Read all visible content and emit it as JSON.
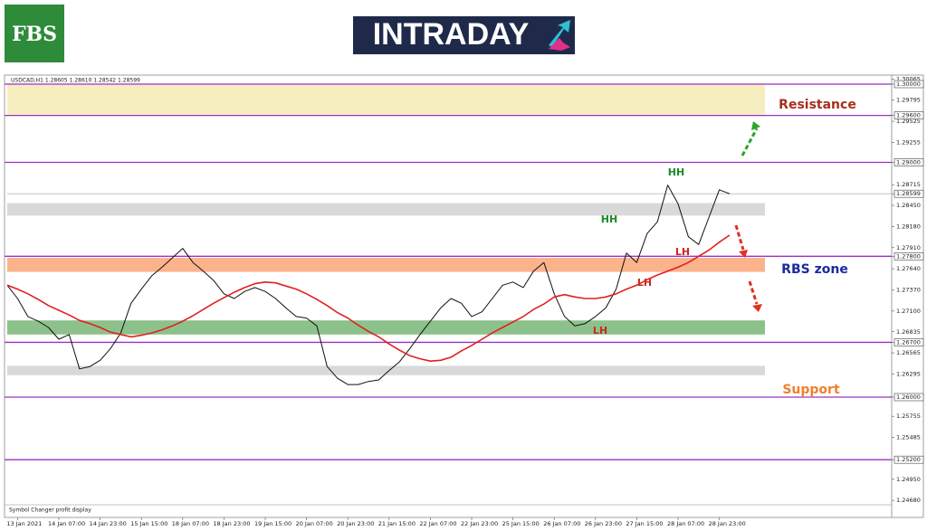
{
  "brand": {
    "logo": "FBS",
    "banner": "INTRADAY"
  },
  "chart_data": {
    "type": "line",
    "symbol_header": "USDCAD,H1  1.28605 1.28610 1.28542 1.28599",
    "footer": "Symbol Changer profit display",
    "x": [
      null,
      "13 Jan 2021",
      null,
      null,
      null,
      "14 Jan 07:00",
      null,
      null,
      null,
      "14 Jan 23:00",
      null,
      null,
      null,
      "15 Jan 15:00",
      null,
      null,
      null,
      "18 Jan 07:00",
      null,
      null,
      null,
      "18 Jan 23:00",
      null,
      null,
      null,
      "19 Jan 15:00",
      null,
      null,
      null,
      "20 Jan 07:00",
      null,
      null,
      null,
      "20 Jan 23:00",
      null,
      null,
      null,
      "21 Jan 15:00",
      null,
      null,
      null,
      "22 Jan 07:00",
      null,
      null,
      null,
      "22 Jan 23:00",
      null,
      null,
      null,
      "25 Jan 15:00",
      null,
      null,
      null,
      "26 Jan 07:00",
      null,
      null,
      null,
      "26 Jan 23:00",
      null,
      null,
      null,
      "27 Jan 15:00",
      null,
      null,
      null,
      "28 Jan 07:00",
      null,
      null,
      null,
      "28 Jan 23:00",
      null
    ],
    "series": [
      {
        "name": "USDCAD",
        "color": "#111111",
        "values": [
          1.2743,
          1.2726,
          1.2703,
          1.2697,
          1.2689,
          1.2674,
          1.268,
          1.2636,
          1.2639,
          1.2647,
          1.2662,
          1.2682,
          1.272,
          1.2738,
          1.2755,
          1.2766,
          1.2778,
          1.279,
          1.2772,
          1.2761,
          1.2749,
          1.2732,
          1.2726,
          1.2735,
          1.274,
          1.2735,
          1.2726,
          1.2714,
          1.2703,
          1.2701,
          1.2691,
          1.2639,
          1.2624,
          1.2616,
          1.2616,
          1.262,
          1.2622,
          1.2634,
          1.2645,
          1.2662,
          1.268,
          1.2697,
          1.2714,
          1.2726,
          1.272,
          1.2703,
          1.2709,
          1.2726,
          1.2743,
          1.2747,
          1.274,
          1.2761,
          1.2772,
          1.2732,
          1.2703,
          1.2691,
          1.2694,
          1.2703,
          1.2714,
          1.2738,
          1.2784,
          1.2772,
          1.2809,
          1.2824,
          1.2871,
          1.2847,
          1.2805,
          1.2795,
          1.283,
          1.2865,
          1.28599
        ]
      },
      {
        "name": "MA",
        "color": "#e02020",
        "values": [
          1.2743,
          1.2738,
          1.2732,
          1.2725,
          1.2717,
          1.2711,
          1.2705,
          1.2698,
          1.2694,
          1.2689,
          1.2683,
          1.268,
          1.2677,
          1.2679,
          1.2682,
          1.2686,
          1.2691,
          1.2697,
          1.2704,
          1.2712,
          1.272,
          1.2727,
          1.2734,
          1.274,
          1.2745,
          1.2747,
          1.2746,
          1.2742,
          1.2738,
          1.2732,
          1.2725,
          1.2717,
          1.2708,
          1.2701,
          1.2692,
          1.2684,
          1.2677,
          1.2668,
          1.266,
          1.2653,
          1.2649,
          1.2646,
          1.2647,
          1.2651,
          1.2659,
          1.2666,
          1.2674,
          1.2682,
          1.2689,
          1.2696,
          1.2703,
          1.2712,
          1.2719,
          1.2728,
          1.2731,
          1.2728,
          1.2726,
          1.2726,
          1.2728,
          1.2732,
          1.2738,
          1.2743,
          1.275,
          1.2756,
          1.2761,
          1.2766,
          1.2772,
          1.278,
          1.2788,
          1.2798,
          1.2807
        ]
      }
    ],
    "ylim": [
      1.24624,
      1.30104
    ],
    "yticks": [
      1.30065,
      {
        "value": 1.3,
        "label": "1.30000"
      },
      1.29795,
      {
        "value": 1.296,
        "label": "1.29600"
      },
      1.29525,
      1.29255,
      {
        "value": 1.29,
        "label": "1.29000"
      },
      1.28715,
      1.28599,
      {
        "value": 1.2845,
        "label": "1.28450"
      },
      {
        "value": 1.2818,
        "label": "1.28180"
      },
      {
        "value": 1.2791,
        "label": "1.27910"
      },
      {
        "value": 1.278,
        "label": "1.27800"
      },
      {
        "value": 1.2764,
        "label": "1.27640"
      },
      {
        "value": 1.2737,
        "label": "1.27370"
      },
      {
        "value": 1.271,
        "label": "1.27100"
      },
      1.26835,
      {
        "value": 1.267,
        "label": "1.26700"
      },
      1.26565,
      1.26295,
      {
        "value": 1.26,
        "label": "1.26000"
      },
      1.25755,
      1.25485,
      {
        "value": 1.252,
        "label": "1.25200"
      },
      {
        "value": 1.2495,
        "label": "1.24950"
      },
      {
        "value": 1.2468,
        "label": "1.24680"
      }
    ],
    "levels": [
      1.3,
      1.296,
      1.29,
      1.278,
      1.267,
      1.26,
      1.252
    ],
    "level_color": "#9b30c8",
    "zones": [
      {
        "from": 1.296,
        "to": 1.3,
        "color": "#f7eebf"
      },
      {
        "from": 1.2832,
        "to": 1.2848,
        "color": "#d9d9d9"
      },
      {
        "from": 1.276,
        "to": 1.2778,
        "color": "#fbb38c"
      },
      {
        "from": 1.268,
        "to": 1.2698,
        "color": "#8dc18b"
      },
      {
        "from": 1.2628,
        "to": 1.264,
        "color": "#d9d9d9"
      }
    ],
    "zone_labels": [
      {
        "text": "Resistance",
        "color": "#a3301c"
      },
      {
        "text": "RBS zone",
        "color": "#1c2a9e"
      },
      {
        "text": "Support",
        "color": "#f0802e"
      }
    ],
    "annotations": [
      {
        "text": "HH",
        "color": "#1a8a2a"
      },
      {
        "text": "HH",
        "color": "#1a8a2a"
      },
      {
        "text": "LH",
        "color": "#c82a1e"
      },
      {
        "text": "LH",
        "color": "#c82a1e"
      },
      {
        "text": "LH",
        "color": "#c82a1e"
      }
    ]
  }
}
